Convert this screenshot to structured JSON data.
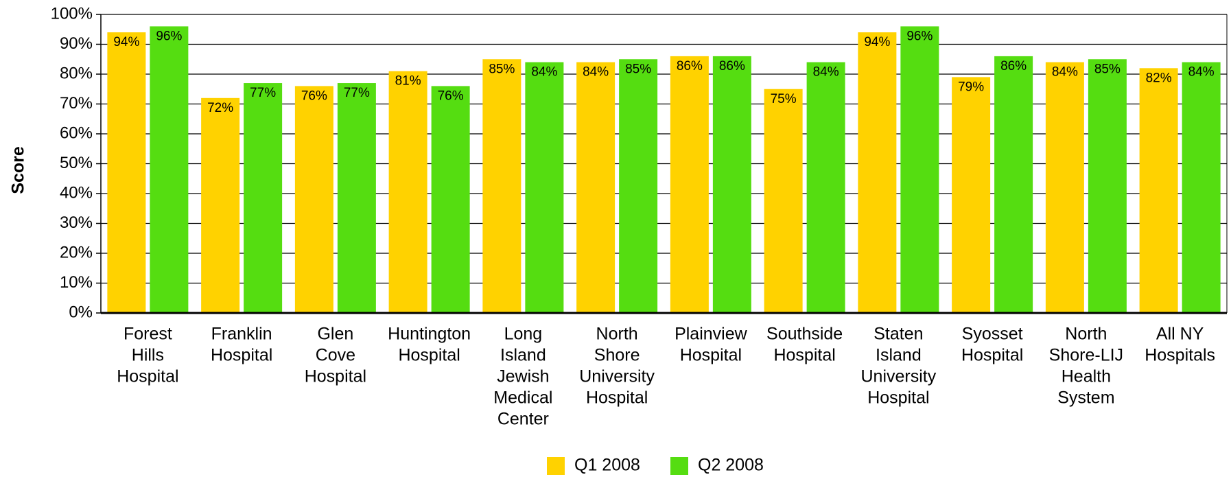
{
  "chart_data": {
    "type": "bar",
    "y_label": "Score",
    "categories": [
      [
        "Forest",
        "Hills",
        "Hospital"
      ],
      [
        "Franklin",
        "Hospital"
      ],
      [
        "Glen",
        "Cove",
        "Hospital"
      ],
      [
        "Huntington",
        "Hospital"
      ],
      [
        "Long",
        "Island",
        "Jewish",
        "Medical",
        "Center"
      ],
      [
        "North",
        "Shore",
        "University",
        "Hospital"
      ],
      [
        "Plainview",
        "Hospital"
      ],
      [
        "Southside",
        "Hospital"
      ],
      [
        "Staten",
        "Island",
        "University",
        "Hospital"
      ],
      [
        "Syosset",
        "Hospital"
      ],
      [
        "North",
        "Shore-LIJ",
        "Health",
        "System"
      ],
      [
        "All NY",
        "Hospitals"
      ]
    ],
    "series": [
      {
        "name": "Q1 2008",
        "color": "#ffd200",
        "values": [
          94,
          72,
          76,
          81,
          85,
          84,
          86,
          75,
          94,
          79,
          84,
          82
        ],
        "value_labels": [
          "94%",
          "72%",
          "76%",
          "81%",
          "85%",
          "84%",
          "86%",
          "75%",
          "94%",
          "79%",
          "84%",
          "82%"
        ]
      },
      {
        "name": "Q2 2008",
        "color": "#55dd11",
        "values": [
          96,
          77,
          77,
          76,
          84,
          85,
          86,
          84,
          96,
          86,
          85,
          84
        ],
        "value_labels": [
          "96%",
          "77%",
          "77%",
          "76%",
          "84%",
          "85%",
          "86%",
          "84%",
          "96%",
          "86%",
          "85%",
          "84%"
        ]
      }
    ],
    "ylim": [
      0,
      100
    ],
    "yticks": [
      {
        "value": 0,
        "label": "0%"
      },
      {
        "value": 10,
        "label": "10%"
      },
      {
        "value": 20,
        "label": "20%"
      },
      {
        "value": 30,
        "label": "30%"
      },
      {
        "value": 40,
        "label": "40%"
      },
      {
        "value": 50,
        "label": "50%"
      },
      {
        "value": 60,
        "label": "60%"
      },
      {
        "value": 70,
        "label": "70%"
      },
      {
        "value": 80,
        "label": "80%"
      },
      {
        "value": 90,
        "label": "90%"
      },
      {
        "value": 100,
        "label": "100%"
      }
    ],
    "grid": true,
    "legend": "bottom"
  }
}
